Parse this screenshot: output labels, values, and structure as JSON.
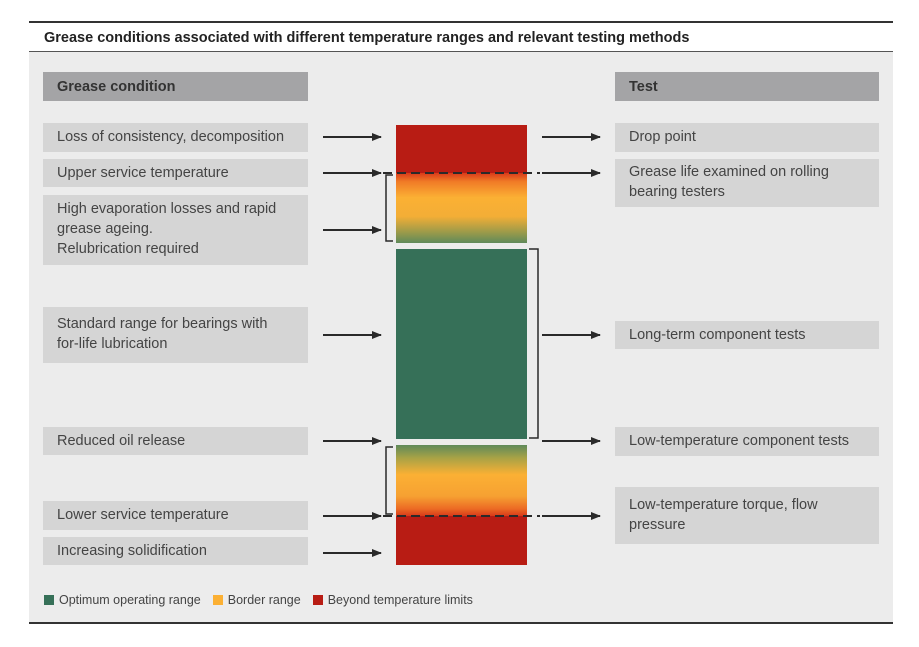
{
  "title": "Grease conditions associated with different temperature ranges and relevant testing methods",
  "left_header": "Grease condition",
  "right_header": "Test",
  "conditions": [
    "Loss of consistency, decomposition",
    "Upper service temperature",
    "High evaporation losses and rapid grease ageing.\nRelubrication required",
    "Standard range for bearings with for-life lubrication",
    "Reduced oil release",
    "Lower service temperature",
    "Increasing solidification"
  ],
  "tests": [
    "Drop point",
    "Grease life examined on rolling bearing testers",
    "Long-term component tests",
    "Low-temperature component tests",
    "Low-temperature torque, flow pressure"
  ],
  "legend": [
    {
      "label": "Optimum operating range",
      "color": "#367058"
    },
    {
      "label": "Border range",
      "color": "#fbb034"
    },
    {
      "label": "Beyond temperature limits",
      "color": "#b81c14"
    }
  ],
  "colors": {
    "red": "#b81c14",
    "orange": "#fbb034",
    "green": "#367058",
    "header_fill": "#a4a4a6",
    "box_fill": "#d5d5d5",
    "panel_fill": "#ececec"
  }
}
